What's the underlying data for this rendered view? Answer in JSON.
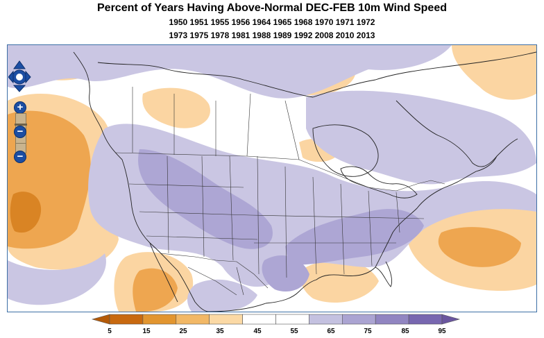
{
  "title": {
    "main": "Percent of Years Having Above-Normal DEC-FEB 10m Wind Speed",
    "years_line1": "1950 1951 1955 1956 1964 1965 1968 1970 1971 1972",
    "years_line2": "1973 1975 1978 1981 1988 1989 1992 2008 2010 2013"
  },
  "map_controls": {
    "zoom_in_symbol": "+",
    "zoom_out_symbol": "−"
  },
  "legend": {
    "labels": [
      "5",
      "15",
      "25",
      "35",
      "45",
      "55",
      "65",
      "75",
      "85",
      "95"
    ],
    "colors": [
      "#c8690f",
      "#e2952f",
      "#f2b866",
      "#fbd9a5",
      "#ffffff",
      "#ffffff",
      "#c4c1e0",
      "#aba4d2",
      "#9185c1",
      "#7867b0"
    ],
    "low_arrow_color": "#b45a08",
    "high_arrow_color": "#6a569f"
  },
  "palette": {
    "orange_dark": "#d98424",
    "orange_mid": "#eea650",
    "orange_light": "#fbd5a2",
    "purple_light": "#cac6e3",
    "purple_mid": "#ada6d4",
    "purple_dark": "#9789c3",
    "border": "#3b6ea5"
  }
}
